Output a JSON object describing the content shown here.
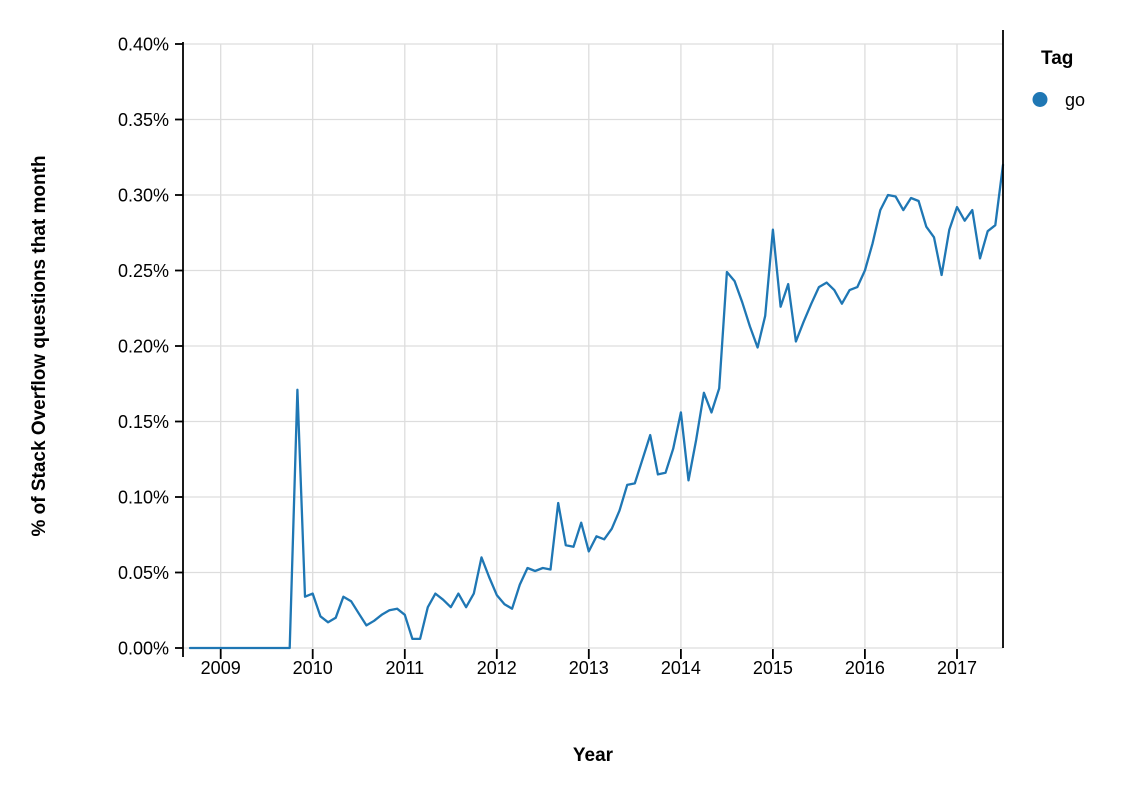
{
  "chart_data": {
    "type": "line",
    "title": "",
    "xlabel": "Year",
    "ylabel": "% of Stack Overflow questions that month",
    "x_unit": "month",
    "y_unit": "percent",
    "ylim": [
      0,
      0.4
    ],
    "y_tick_step": 0.05,
    "y_tick_labels": [
      "0.00%",
      "0.05%",
      "0.10%",
      "0.15%",
      "0.20%",
      "0.25%",
      "0.30%",
      "0.35%",
      "0.40%"
    ],
    "x_tick_labels": [
      "2009",
      "2010",
      "2011",
      "2012",
      "2013",
      "2014",
      "2015",
      "2016",
      "2017"
    ],
    "grid": true,
    "legend": {
      "title": "Tag",
      "position": "top-right",
      "items": [
        {
          "label": "go",
          "color": "#1f77b4"
        }
      ]
    },
    "colors": {
      "line": "#1f77b4",
      "grid": "#dddddd",
      "axis": "#000000",
      "text": "#000000",
      "background": "#ffffff"
    },
    "series": [
      {
        "name": "go",
        "color": "#1f77b4",
        "x": [
          "2008-09",
          "2008-10",
          "2008-11",
          "2008-12",
          "2009-01",
          "2009-02",
          "2009-03",
          "2009-04",
          "2009-05",
          "2009-06",
          "2009-07",
          "2009-08",
          "2009-09",
          "2009-10",
          "2009-11",
          "2009-12",
          "2010-01",
          "2010-02",
          "2010-03",
          "2010-04",
          "2010-05",
          "2010-06",
          "2010-07",
          "2010-08",
          "2010-09",
          "2010-10",
          "2010-11",
          "2010-12",
          "2011-01",
          "2011-02",
          "2011-03",
          "2011-04",
          "2011-05",
          "2011-06",
          "2011-07",
          "2011-08",
          "2011-09",
          "2011-10",
          "2011-11",
          "2011-12",
          "2012-01",
          "2012-02",
          "2012-03",
          "2012-04",
          "2012-05",
          "2012-06",
          "2012-07",
          "2012-08",
          "2012-09",
          "2012-10",
          "2012-11",
          "2012-12",
          "2013-01",
          "2013-02",
          "2013-03",
          "2013-04",
          "2013-05",
          "2013-06",
          "2013-07",
          "2013-08",
          "2013-09",
          "2013-10",
          "2013-11",
          "2013-12",
          "2014-01",
          "2014-02",
          "2014-03",
          "2014-04",
          "2014-05",
          "2014-06",
          "2014-07",
          "2014-08",
          "2014-09",
          "2014-10",
          "2014-11",
          "2014-12",
          "2015-01",
          "2015-02",
          "2015-03",
          "2015-04",
          "2015-05",
          "2015-06",
          "2015-07",
          "2015-08",
          "2015-09",
          "2015-10",
          "2015-11",
          "2015-12",
          "2016-01",
          "2016-02",
          "2016-03",
          "2016-04",
          "2016-05",
          "2016-06",
          "2016-07",
          "2016-08",
          "2016-09",
          "2016-10",
          "2016-11",
          "2016-12",
          "2017-01",
          "2017-02",
          "2017-03",
          "2017-04",
          "2017-05",
          "2017-06",
          "2017-07"
        ],
        "values": [
          0,
          0,
          0,
          0,
          0,
          0,
          0,
          0,
          0,
          0,
          0,
          0,
          0,
          0,
          0.171,
          0.034,
          0.036,
          0.021,
          0.017,
          0.02,
          0.034,
          0.031,
          0.023,
          0.015,
          0.018,
          0.022,
          0.025,
          0.026,
          0.022,
          0.006,
          0.006,
          0.027,
          0.036,
          0.032,
          0.027,
          0.036,
          0.027,
          0.036,
          0.06,
          0.047,
          0.035,
          0.029,
          0.026,
          0.042,
          0.053,
          0.051,
          0.053,
          0.052,
          0.096,
          0.068,
          0.067,
          0.083,
          0.064,
          0.074,
          0.072,
          0.079,
          0.091,
          0.108,
          0.109,
          0.125,
          0.141,
          0.115,
          0.116,
          0.132,
          0.156,
          0.111,
          0.138,
          0.169,
          0.156,
          0.172,
          0.249,
          0.243,
          0.229,
          0.213,
          0.199,
          0.22,
          0.277,
          0.226,
          0.241,
          0.203,
          0.216,
          0.228,
          0.239,
          0.242,
          0.237,
          0.228,
          0.237,
          0.239,
          0.25,
          0.268,
          0.29,
          0.3,
          0.299,
          0.29,
          0.298,
          0.296,
          0.279,
          0.272,
          0.247,
          0.277,
          0.292,
          0.283,
          0.29,
          0.258,
          0.276,
          0.28,
          0.32
        ]
      }
    ]
  }
}
